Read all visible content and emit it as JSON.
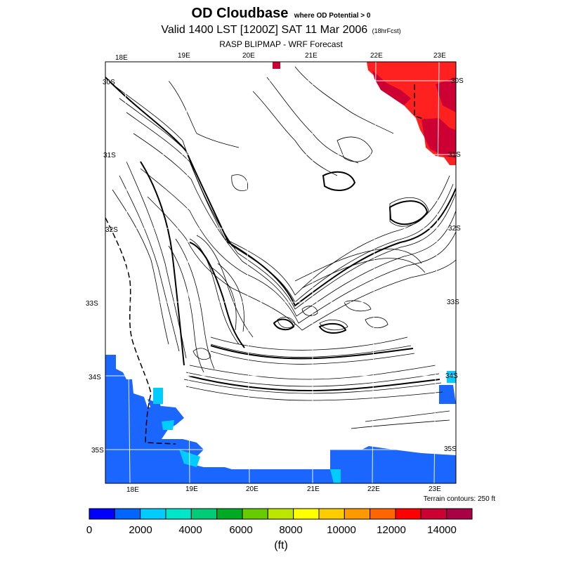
{
  "title": {
    "main": "OD Cloudbase",
    "qualifier": "where OD Potential > 0",
    "valid": "Valid 1400 LST [1200Z] SAT 11 Mar 2006",
    "forecast_tag": "(18hrFcst)",
    "subtitle": "RASP BLIPMAP - WRF Forecast"
  },
  "map": {
    "top_lon_labels": [
      "18E",
      "19E",
      "20E",
      "21E",
      "22E",
      "23E"
    ],
    "bottom_lon_labels": [
      "18E",
      "19E",
      "20E",
      "21E",
      "22E",
      "23E"
    ],
    "left_lat_labels": [
      "30S",
      "31S",
      "32S",
      "33S",
      "34S",
      "35S"
    ],
    "right_lat_labels": [
      "30S",
      "31S",
      "32S",
      "33S",
      "34S",
      "35S"
    ],
    "terrain_note": "Terrain contours: 250 ft"
  },
  "colorbar": {
    "colors": [
      "#0000ff",
      "#0066ff",
      "#00ccff",
      "#00e6c8",
      "#00cc77",
      "#00aa22",
      "#66cc00",
      "#bbe600",
      "#ffff00",
      "#ffcc00",
      "#ff9900",
      "#ff6600",
      "#ff0000",
      "#cc0033",
      "#aa0044"
    ],
    "labels": [
      "0",
      "2000",
      "4000",
      "6000",
      "8000",
      "10000",
      "12000",
      "14000"
    ],
    "unit": "(ft)"
  }
}
